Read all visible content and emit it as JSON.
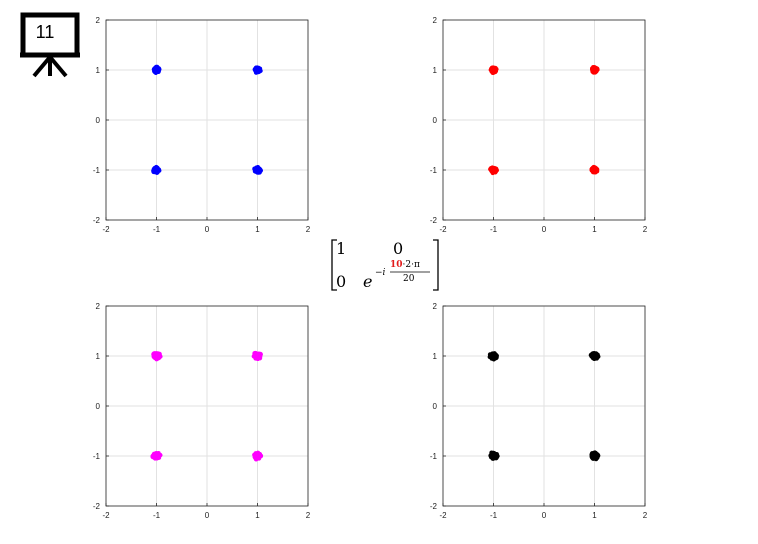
{
  "slide": {
    "number": "11"
  },
  "matrix": {
    "r1c1": "1",
    "r1c2": "0",
    "r2c1": "0",
    "exp_base": "e",
    "exp_prefix": "−i",
    "exp_highlight": "10",
    "exp_rest": "·2·π",
    "exp_denominator": "20",
    "highlight_color": "#e21b1b"
  },
  "chart_data": [
    {
      "type": "scatter",
      "position": "top-left",
      "color": "#0000ff",
      "xlim": [
        -2,
        2
      ],
      "ylim": [
        -2,
        2
      ],
      "grid": true,
      "x_ticks": [
        "-2",
        "-1",
        "0",
        "1",
        "2"
      ],
      "y_ticks": [
        "2",
        "1",
        "0",
        "-1",
        "-2"
      ],
      "clusters": [
        {
          "x": -1,
          "y": 1
        },
        {
          "x": 1,
          "y": 1
        },
        {
          "x": -1,
          "y": -1
        },
        {
          "x": 1,
          "y": -1
        }
      ],
      "spread": 0.06
    },
    {
      "type": "scatter",
      "position": "top-right",
      "color": "#ff0000",
      "xlim": [
        -2,
        2
      ],
      "ylim": [
        -2,
        2
      ],
      "grid": true,
      "x_ticks": [
        "-2",
        "-1",
        "0",
        "1",
        "2"
      ],
      "y_ticks": [
        "2",
        "1",
        "0",
        "-1",
        "-2"
      ],
      "clusters": [
        {
          "x": -1,
          "y": 1
        },
        {
          "x": 1,
          "y": 1
        },
        {
          "x": -1,
          "y": -1
        },
        {
          "x": 1,
          "y": -1
        }
      ],
      "spread": 0.06
    },
    {
      "type": "scatter",
      "position": "bottom-left",
      "color": "#ff00ff",
      "xlim": [
        -2,
        2
      ],
      "ylim": [
        -2,
        2
      ],
      "grid": true,
      "x_ticks": [
        "-2",
        "-1",
        "0",
        "1",
        "2"
      ],
      "y_ticks": [
        "2",
        "1",
        "0",
        "-1",
        "-2"
      ],
      "clusters": [
        {
          "x": -1,
          "y": 1
        },
        {
          "x": 1,
          "y": 1
        },
        {
          "x": -1,
          "y": -1
        },
        {
          "x": 1,
          "y": -1
        }
      ],
      "spread": 0.07
    },
    {
      "type": "scatter",
      "position": "bottom-right",
      "color": "#000000",
      "xlim": [
        -2,
        2
      ],
      "ylim": [
        -2,
        2
      ],
      "grid": true,
      "x_ticks": [
        "-2",
        "-1",
        "0",
        "1",
        "2"
      ],
      "y_ticks": [
        "2",
        "1",
        "0",
        "-1",
        "-2"
      ],
      "clusters": [
        {
          "x": -1,
          "y": 1
        },
        {
          "x": 1,
          "y": 1
        },
        {
          "x": -1,
          "y": -1
        },
        {
          "x": 1,
          "y": -1
        }
      ],
      "spread": 0.07
    }
  ]
}
